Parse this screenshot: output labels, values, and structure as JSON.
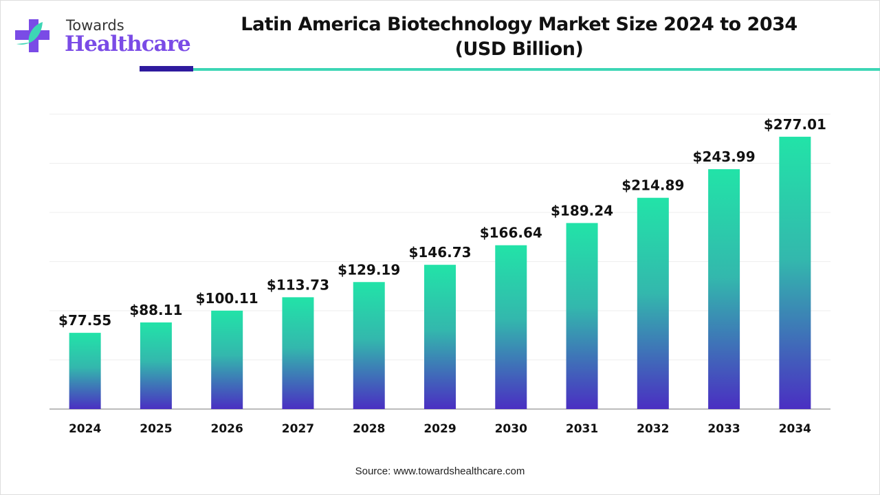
{
  "logo": {
    "line1": "Towards",
    "line2": "Healthcare"
  },
  "title": [
    "Latin America Biotechnology Market Size 2024 to 2034",
    "(USD Billion)"
  ],
  "source": "Source: www.towardshealthcare.com",
  "colors": {
    "bar_top": "#22e3a8",
    "bar_bottom": "#4a2fc2",
    "accent_dark": "#2e1a9e",
    "accent_teal": "#3dd6b5"
  },
  "chart_data": {
    "type": "bar",
    "title": "Latin America Biotechnology Market Size 2024 to 2034 (USD Billion)",
    "categories": [
      "2024",
      "2025",
      "2026",
      "2027",
      "2028",
      "2029",
      "2030",
      "2031",
      "2032",
      "2033",
      "2034"
    ],
    "values": [
      77.55,
      88.11,
      100.11,
      113.73,
      129.19,
      146.73,
      166.64,
      189.24,
      214.89,
      243.99,
      277.01
    ],
    "data_labels": [
      "$77.55",
      "$88.11",
      "$100.11",
      "$113.73",
      "$129.19",
      "$146.73",
      "$166.64",
      "$189.24",
      "$214.89",
      "$243.99",
      "$277.01"
    ],
    "xlabel": "",
    "ylabel": "",
    "ylim": [
      0,
      300
    ],
    "grid": true,
    "y_axis_labels_shown": false
  }
}
